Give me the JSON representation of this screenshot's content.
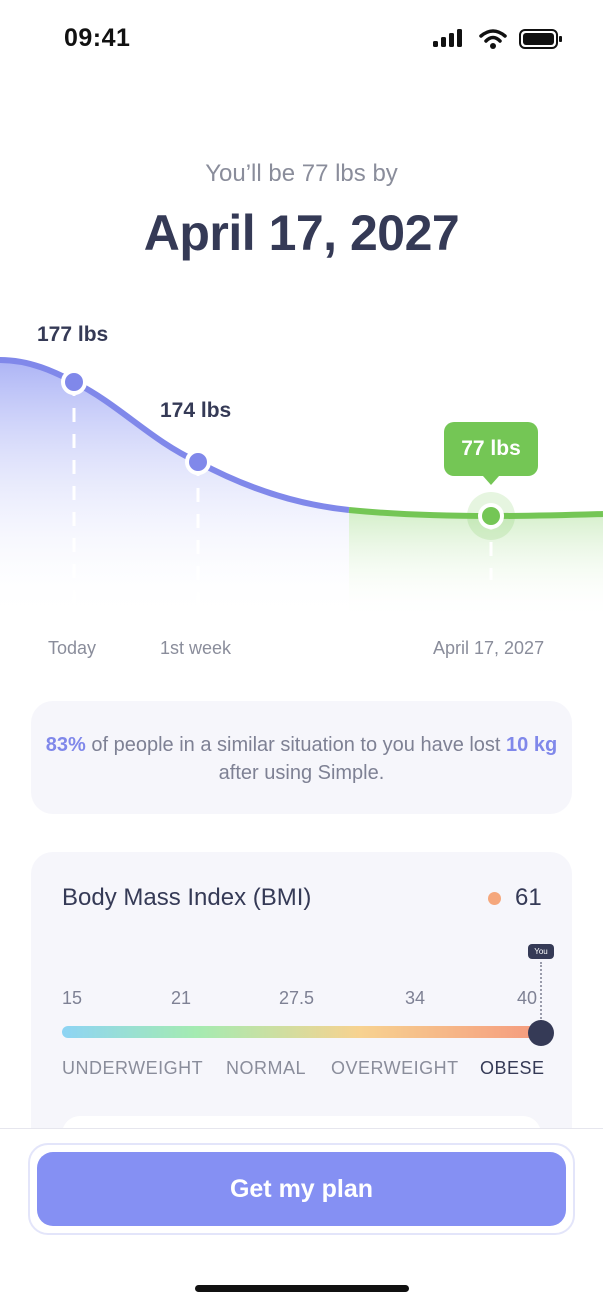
{
  "status_bar": {
    "time": "09:41"
  },
  "header": {
    "subtitle": "You’ll be 77 lbs by",
    "date": "April 17, 2027"
  },
  "chart_data": {
    "type": "line",
    "points": [
      {
        "label": "177 lbs",
        "value": 177,
        "x_label": "Today"
      },
      {
        "label": "174 lbs",
        "value": 174,
        "x_label": "1st week"
      },
      {
        "label": "77 lbs",
        "value": 77,
        "x_label": "April 17, 2027"
      }
    ],
    "colors": {
      "progress": "#8088ea",
      "goal": "#74c655"
    }
  },
  "info": {
    "percent": "83%",
    "text_a": " of people in a similar situation to you have lost ",
    "amount": "10 kg",
    "text_b": " after using Simple."
  },
  "bmi": {
    "title": "Body Mass Index (BMI)",
    "value": "61",
    "marker_label": "You",
    "ticks": [
      "15",
      "21",
      "27.5",
      "34",
      "40"
    ],
    "categories": [
      "UNDERWEIGHT",
      "NORMAL",
      "OVERWEIGHT",
      "OBESE"
    ],
    "active_category": "OBESE",
    "status_color": "#f5a77c"
  },
  "cta": {
    "label": "Get my plan"
  }
}
